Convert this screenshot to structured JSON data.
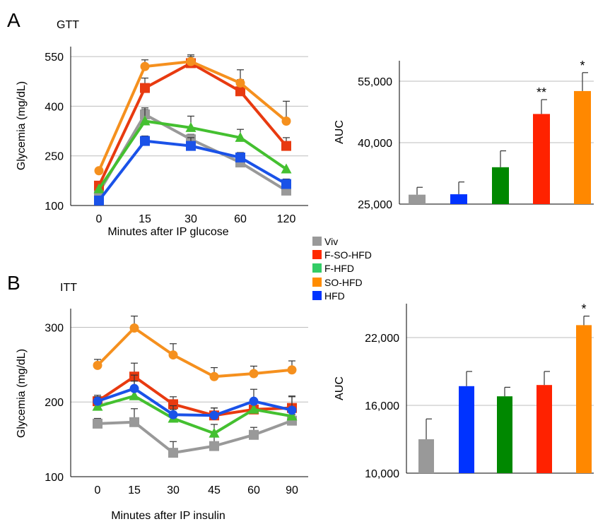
{
  "panels": {
    "A": {
      "letter": "A",
      "title": "GTT"
    },
    "B": {
      "letter": "B",
      "title": "ITT"
    }
  },
  "legend": [
    {
      "label": "Viv",
      "color": "#999999"
    },
    {
      "label": "F-SO-HFD",
      "color": "#ff2a00"
    },
    {
      "label": "F-HFD",
      "color": "#33cc66"
    },
    {
      "label": "SO-HFD",
      "color": "#ff8c00"
    },
    {
      "label": "HFD",
      "color": "#0033ff"
    }
  ],
  "chart_data": [
    {
      "id": "gtt-line",
      "type": "line",
      "categories": [
        "0",
        "15",
        "30",
        "60",
        "120"
      ],
      "xlabel": "Minutes after IP glucose",
      "ylabel": "Glycemia (mg/dL)",
      "ylim": [
        100,
        580
      ],
      "yticks": [
        100,
        250,
        400,
        550
      ],
      "grid": true,
      "series": [
        {
          "name": "Viv",
          "color": "#999999",
          "marker": "square",
          "values": [
            140,
            375,
            300,
            230,
            145
          ],
          "errors": [
            0,
            15,
            15,
            15,
            10
          ]
        },
        {
          "name": "F-SO-HFD",
          "color": "#e83a10",
          "marker": "square",
          "values": [
            160,
            455,
            530,
            445,
            280
          ],
          "errors": [
            0,
            30,
            20,
            35,
            25
          ]
        },
        {
          "name": "F-HFD",
          "color": "#44c030",
          "marker": "triangle",
          "values": [
            150,
            355,
            335,
            305,
            210
          ],
          "errors": [
            0,
            40,
            35,
            25,
            0
          ]
        },
        {
          "name": "SO-HFD",
          "color": "#f5901e",
          "marker": "circle",
          "values": [
            205,
            520,
            535,
            470,
            355
          ],
          "errors": [
            0,
            20,
            20,
            40,
            60
          ]
        },
        {
          "name": "HFD",
          "color": "#1a52e8",
          "marker": "square",
          "values": [
            115,
            295,
            280,
            245,
            165
          ],
          "errors": [
            0,
            15,
            25,
            15,
            15
          ]
        }
      ]
    },
    {
      "id": "gtt-auc",
      "type": "bar",
      "categories": [
        "Viv",
        "HFD",
        "F-HFD",
        "F-SO-HFD",
        "SO-HFD"
      ],
      "colors": [
        "#999999",
        "#0033ff",
        "#008800",
        "#ff2200",
        "#ff8800"
      ],
      "values": [
        27300,
        27400,
        34000,
        47000,
        52600
      ],
      "errors": [
        1800,
        3000,
        4000,
        3500,
        4500
      ],
      "annotations": [
        "",
        "",
        "",
        "**",
        "*"
      ],
      "ylabel": "AUC",
      "ylim": [
        25000,
        60000
      ],
      "yticks": [
        25000,
        40000,
        55000
      ],
      "yticklabels": [
        "25,000",
        "40,000",
        "55,000"
      ],
      "grid": true
    },
    {
      "id": "itt-line",
      "type": "line",
      "categories": [
        "0",
        "15",
        "30",
        "45",
        "60",
        "90"
      ],
      "xlabel": "Minutes after IP insulin",
      "ylabel": "Glycemia (mg/dL)",
      "ylim": [
        100,
        325
      ],
      "yticks": [
        100,
        200,
        300
      ],
      "grid": true,
      "series": [
        {
          "name": "Viv",
          "color": "#999999",
          "marker": "square",
          "values": [
            171,
            173,
            132,
            141,
            156,
            175
          ],
          "errors": [
            7,
            18,
            15,
            12,
            10,
            8
          ]
        },
        {
          "name": "F-SO-HFD",
          "color": "#e83a10",
          "marker": "square",
          "values": [
            201,
            234,
            197,
            182,
            190,
            192
          ],
          "errors": [
            8,
            18,
            10,
            10,
            10,
            16
          ]
        },
        {
          "name": "F-HFD",
          "color": "#44c030",
          "marker": "triangle",
          "values": [
            194,
            208,
            178,
            158,
            190,
            181
          ],
          "errors": [
            8,
            20,
            12,
            12,
            12,
            8
          ]
        },
        {
          "name": "SO-HFD",
          "color": "#f5901e",
          "marker": "circle",
          "values": [
            249,
            299,
            263,
            234,
            238,
            243
          ],
          "errors": [
            8,
            16,
            15,
            12,
            10,
            12
          ]
        },
        {
          "name": "HFD",
          "color": "#1a52e8",
          "marker": "circle",
          "values": [
            201,
            218,
            183,
            182,
            201,
            189
          ],
          "errors": [
            6,
            18,
            12,
            10,
            16,
            18
          ]
        }
      ]
    },
    {
      "id": "itt-auc",
      "type": "bar",
      "categories": [
        "Viv",
        "HFD",
        "F-HFD",
        "F-SO-HFD",
        "SO-HFD"
      ],
      "colors": [
        "#999999",
        "#0033ff",
        "#008800",
        "#ff2200",
        "#ff8800"
      ],
      "values": [
        13000,
        17700,
        16800,
        17800,
        23100
      ],
      "errors": [
        1800,
        1300,
        800,
        1200,
        800
      ],
      "annotations": [
        "",
        "",
        "",
        "",
        "*"
      ],
      "ylabel": "AUC",
      "ylim": [
        10000,
        25000
      ],
      "yticks": [
        10000,
        16000,
        22000
      ],
      "yticklabels": [
        "10,000",
        "16,000",
        "22,000"
      ],
      "grid": true
    }
  ]
}
